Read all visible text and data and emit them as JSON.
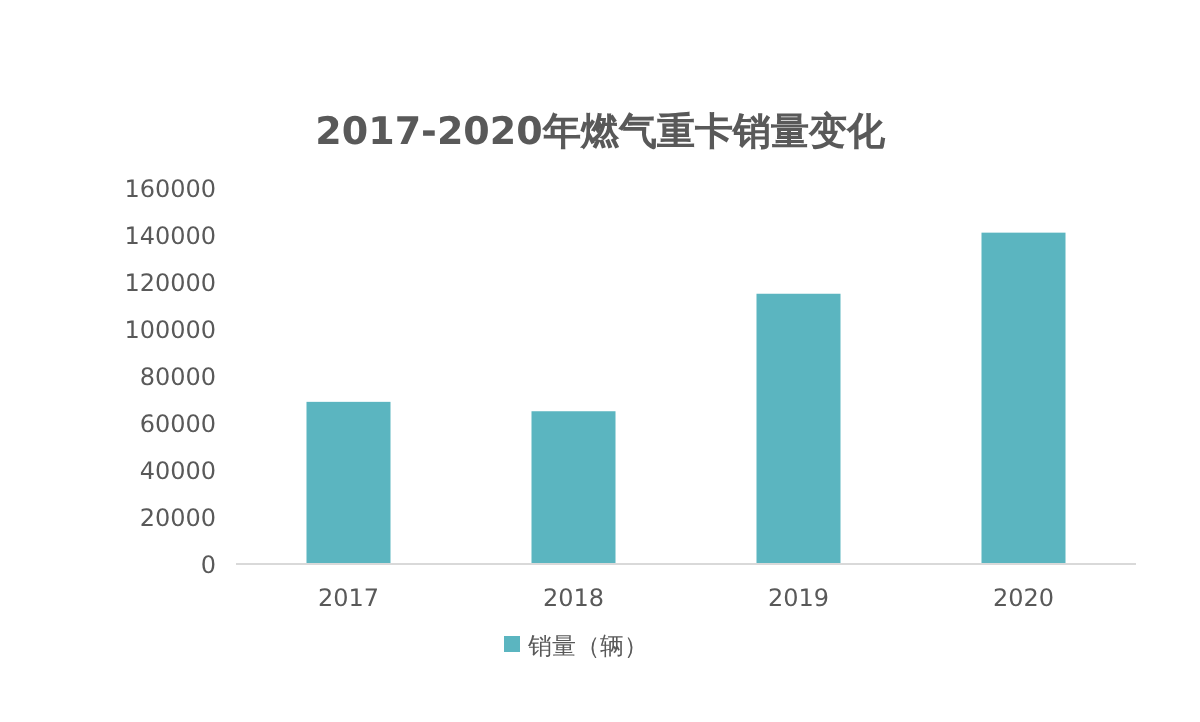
{
  "chart_data": {
    "type": "bar",
    "title": "2017-2020年燃气重卡销量变化",
    "categories": [
      "2017",
      "2018",
      "2019",
      "2020"
    ],
    "series": [
      {
        "name": "销量（辆）",
        "color": "#5bb5c0",
        "values": [
          69000,
          65000,
          115000,
          141000
        ]
      }
    ],
    "ylim": [
      0,
      160000
    ],
    "yticks": [
      0,
      20000,
      40000,
      60000,
      80000,
      100000,
      120000,
      140000,
      160000
    ],
    "grid": false,
    "legend": "bottom"
  }
}
